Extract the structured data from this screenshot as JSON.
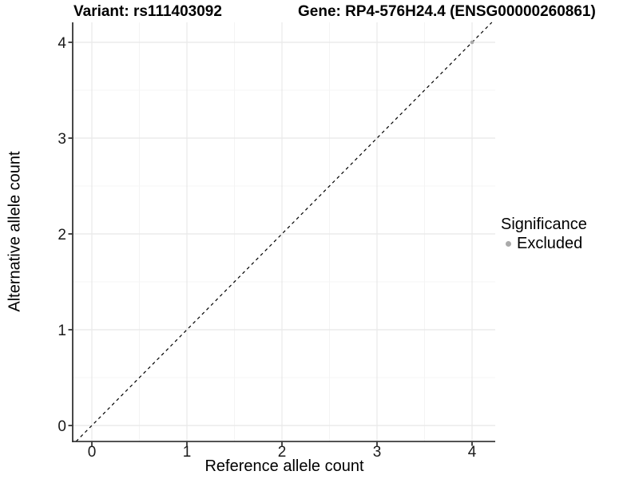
{
  "colors": {
    "background": "#ffffff",
    "text": "#000000",
    "axis": "#1a1a1a",
    "tick_label": "#1a1a1a",
    "grid_major": "#e8e8e8",
    "grid_minor": "#f4f4f4",
    "reference_line": "#000000",
    "excluded": "#aaaaaa"
  },
  "legend": {
    "title": "Significance",
    "items": [
      {
        "label": "Excluded",
        "color": "#aaaaaa",
        "marker": "circle-icon"
      }
    ]
  },
  "chart_data": {
    "type": "scatter",
    "title_left": "Variant: rs111403092",
    "title_right": "Gene: RP4-576H24.4 (ENSG00000260861)",
    "xlabel": "Reference allele count",
    "ylabel": "Alternative allele count",
    "xlim": [
      -0.2,
      4.25
    ],
    "ylim": [
      -0.17,
      4.21
    ],
    "x_ticks": [
      0,
      1,
      2,
      3,
      4
    ],
    "y_ticks": [
      0,
      1,
      2,
      3,
      4
    ],
    "x_minor_ticks": [
      0.5,
      1.5,
      2.5,
      3.5
    ],
    "y_minor_ticks": [
      0.5,
      1.5,
      2.5,
      3.5
    ],
    "grid": "major+minor",
    "legend_position": "right",
    "series": [
      {
        "name": "Excluded",
        "color": "#aaaaaa",
        "points": [
          {
            "x": 4,
            "y": 4
          }
        ]
      }
    ],
    "reference_line": {
      "label": "identity y = x",
      "slope": 1,
      "intercept": 0,
      "style": "dashed",
      "color": "#000000"
    }
  }
}
